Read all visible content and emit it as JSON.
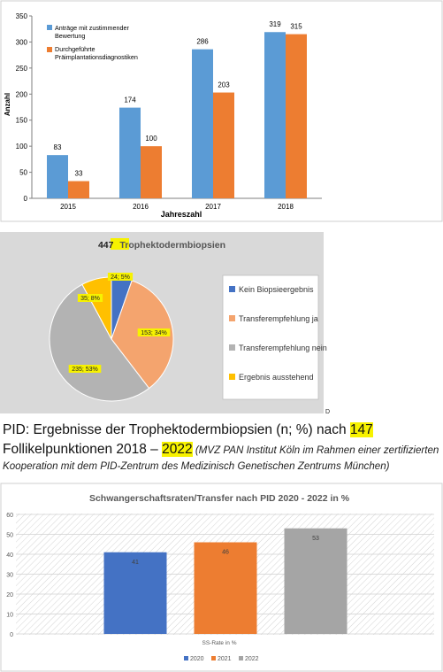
{
  "chart_data": [
    {
      "type": "bar",
      "categories": [
        "2015",
        "2016",
        "2017",
        "2018"
      ],
      "series": [
        {
          "name": "Anträge mit zustimmender Bewertung",
          "values": [
            83,
            174,
            286,
            319
          ],
          "color": "#5b9bd5"
        },
        {
          "name": "Durchgeführte Präimplantationsdiagnostiken",
          "values": [
            33,
            100,
            203,
            315
          ],
          "color": "#ed7d31"
        }
      ],
      "legend_lines": [
        [
          "Anträge mit zustimmender",
          "Bewertung"
        ],
        [
          "Durchgeführte",
          "Präimplantationsdiagnostiken"
        ]
      ],
      "title": "",
      "xlabel": "Jahreszahl",
      "ylabel": "Anzahl",
      "ylim": [
        0,
        350
      ],
      "yticks": [
        "0",
        "50",
        "100",
        "150",
        "200",
        "250",
        "300",
        "350"
      ],
      "data_labels": [
        [
          "83",
          "174",
          "286",
          "319"
        ],
        [
          "33",
          "100",
          "203",
          "315"
        ]
      ],
      "grid": false,
      "legend": "top-left"
    },
    {
      "type": "pie",
      "title_number": "447",
      "title_text": "Trophektodermbiopsien",
      "slices": [
        {
          "label": "Kein Biopsieergebnis",
          "value": 24,
          "percent": 5,
          "data_label": "24; 5%",
          "color": "#4472c4"
        },
        {
          "label": "Transferempfehlung ja",
          "value": 153,
          "percent": 34,
          "data_label": "153; 34%",
          "color": "#f4a46e"
        },
        {
          "label": "Transferempfehlung nein",
          "value": 235,
          "percent": 53,
          "data_label": "235; 53%",
          "color": "#b3b3b3"
        },
        {
          "label": "Ergebnis ausstehend",
          "value": 35,
          "percent": 8,
          "data_label": "35; 8%",
          "color": "#ffc000"
        }
      ],
      "legend": "right",
      "corner_mark": "D"
    },
    {
      "type": "bar",
      "title": "Schwangerschaftsraten/Transfer nach PID 2020 - 2022 in %",
      "categories": [
        "SS-Rate in %"
      ],
      "series": [
        {
          "name": "2020",
          "values": [
            41
          ],
          "color": "#4472c4"
        },
        {
          "name": "2021",
          "values": [
            46
          ],
          "color": "#ed7d31"
        },
        {
          "name": "2022",
          "values": [
            53
          ],
          "color": "#a5a5a5"
        }
      ],
      "data_labels": [
        "41",
        "46",
        "53"
      ],
      "ylim": [
        0,
        60
      ],
      "yticks": [
        "0",
        "10",
        "20",
        "30",
        "40",
        "50",
        "60"
      ],
      "grid": true,
      "legend": "bottom"
    }
  ],
  "caption": {
    "line1_prefix": "PID: Ergebnisse der Trophektodermbiopsien (n; %) nach ",
    "line1_highlight": "147",
    "line2_prefix": "Follikelpunktionen 2018 – ",
    "line2_highlight": "2022",
    "note_part1": " (MVZ PAN Institut Köln im Rahmen einer zertifizierten",
    "note_part2": "Kooperation mit dem PID-Zentrum des Medizinisch Genetischen Zentrums München)"
  }
}
